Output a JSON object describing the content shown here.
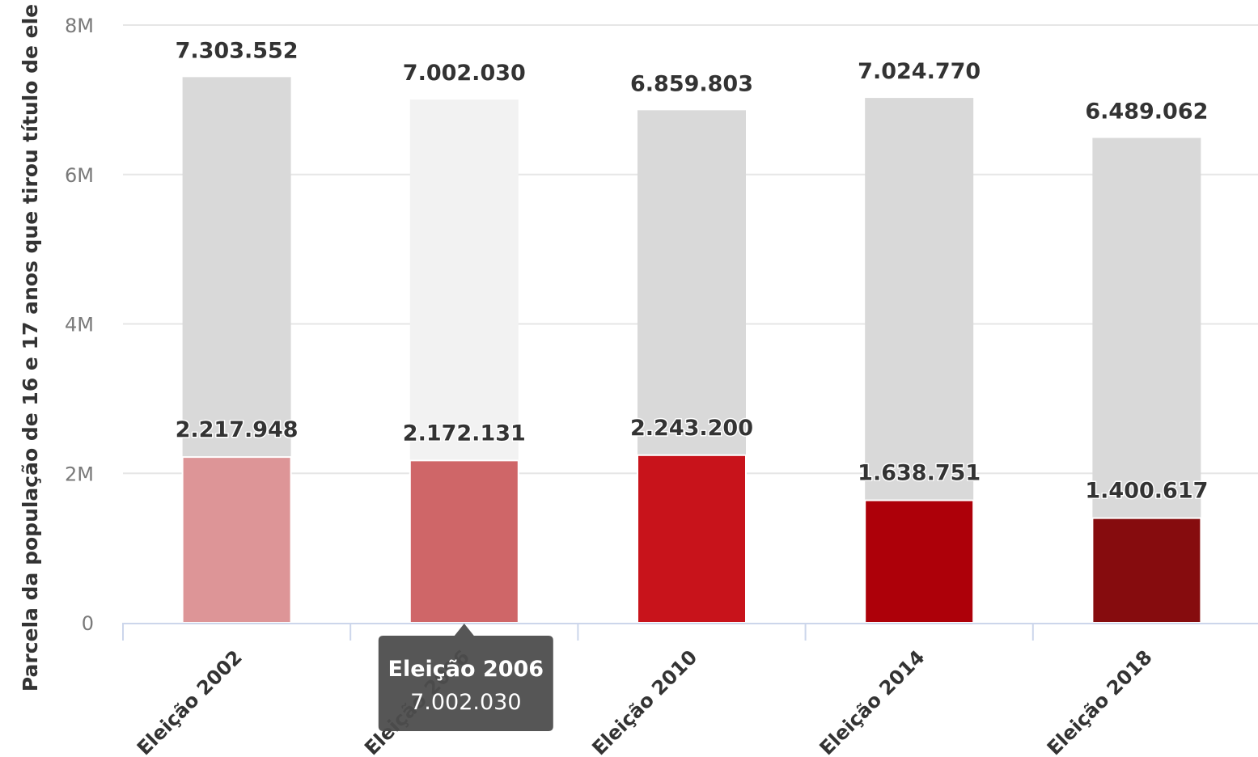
{
  "chart_data": {
    "type": "bar",
    "stacked": false,
    "overlapping": true,
    "title": "",
    "xlabel": "",
    "ylabel": "Parcela da população de 16 e 17 anos que tirou título de ele",
    "ylim": [
      0,
      8000000
    ],
    "yticks": [
      "0",
      "2M",
      "4M",
      "6M",
      "8M"
    ],
    "ytick_values": [
      0,
      2000000,
      4000000,
      6000000,
      8000000
    ],
    "grid": true,
    "legend": "none",
    "categories": [
      "Eleição 2002",
      "Eleição 2006",
      "Eleição 2010",
      "Eleição 2014",
      "Eleição 2018"
    ],
    "series": [
      {
        "role": "total",
        "values": [
          7303552,
          7002030,
          6859803,
          7024770,
          6489062
        ],
        "labels": [
          "7.303.552",
          "7.002.030",
          "6.859.803",
          "7.024.770",
          "6.489.062"
        ],
        "color": "#d9d9d9",
        "hover_color": "#f2f2f2"
      },
      {
        "role": "part",
        "values": [
          2217948,
          2172131,
          2243200,
          1638751,
          1400617
        ],
        "labels": [
          "2.217.948",
          "2.172.131",
          "2.243.200",
          "1.638.751",
          "1.400.617"
        ],
        "colors": [
          "#dd9597",
          "#cf6668",
          "#c8131b",
          "#ad0009",
          "#860c0e"
        ]
      }
    ],
    "tooltip": {
      "category_index": 1,
      "title": "Eleição 2006",
      "value": "7.002.030",
      "background": "#4d4d4d"
    }
  },
  "colors": {
    "grid": "#e6e6e6",
    "axis": "#ccd6eb",
    "text": "#333333",
    "tick_text": "#7a7a7a"
  }
}
